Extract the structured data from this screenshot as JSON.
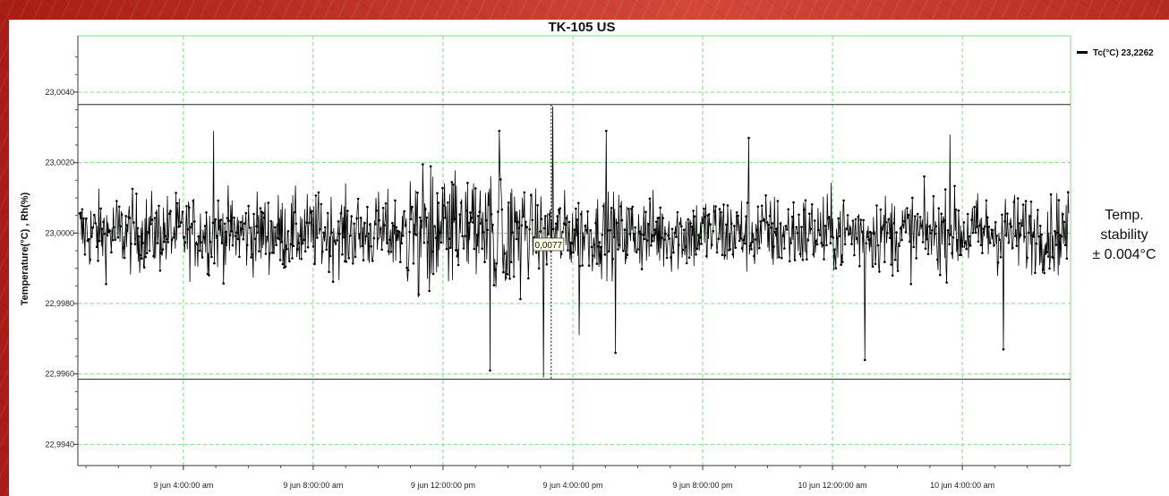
{
  "chart_data": {
    "type": "line",
    "title": "TK-105 US",
    "ylabel": "Temperature(°C) , Rh(%)",
    "xlabel": "",
    "ylim": [
      22.9934,
      23.0056
    ],
    "yticks": [
      "22,9940",
      "22,9960",
      "22,9980",
      "23,0000",
      "23,0020",
      "23,0040"
    ],
    "ytick_values": [
      22.994,
      22.996,
      22.998,
      23.0,
      23.002,
      23.004
    ],
    "xticks": [
      "9 jun 4:00:00 am",
      "9 jun 8:00:00 am",
      "9 jun 12:00:00 pm",
      "9 jun 4:00:00 pm",
      "9 jun 8:00:00 pm",
      "10 jun 12:00:00 am",
      "10 jun 4:00:00 am"
    ],
    "x_range": [
      "9 jun 12:45 am",
      "10 jun 7:20 am"
    ],
    "grid": true,
    "legend_position": "top-right",
    "series": [
      {
        "name": "Tc(°C) 23,2262",
        "color": "#000000",
        "approx_mean": 23.0,
        "approx_min": 22.9959,
        "approx_max": 23.0036,
        "points": 1500
      }
    ],
    "reference_lines": [
      23.00365,
      22.99585
    ],
    "cursor": {
      "x": "9 jun 3:20:00 pm",
      "label": "0,0077"
    }
  },
  "annotation": {
    "line1": "Temp.",
    "line2": "stability",
    "line3": "± 0.004°C"
  }
}
